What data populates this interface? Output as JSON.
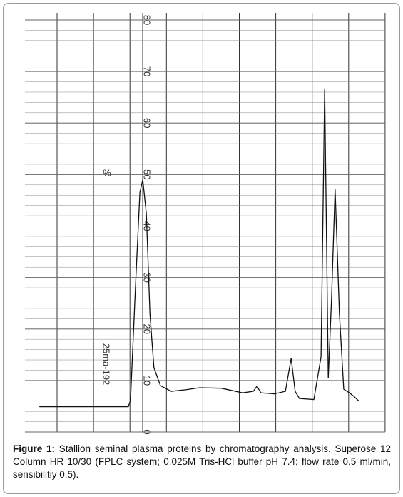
{
  "chart_data": {
    "type": "line",
    "annotations": [
      "%",
      "25ma-192"
    ],
    "x": [
      4,
      28.7,
      29.3,
      30.7,
      31.9,
      32.7,
      33.7,
      34.7,
      35.8,
      37.6,
      40.6,
      44.6,
      48.5,
      54.5,
      60.4,
      63.4,
      64.4,
      65.5,
      69.3,
      72.3,
      73.9,
      75,
      76.2,
      80.2,
      82.2,
      83.2,
      84.2,
      85.1,
      86.1,
      87.3,
      88.5,
      90.1,
      91.5,
      92.7
    ],
    "values": [
      4.9,
      4.9,
      6.2,
      28.5,
      46.5,
      49,
      42.4,
      22.9,
      12.5,
      9,
      7.9,
      8.2,
      8.6,
      8.5,
      7.6,
      7.9,
      8.9,
      7.6,
      7.4,
      7.9,
      14.3,
      7.9,
      6.5,
      6.3,
      14.6,
      66.7,
      10.4,
      25.7,
      47.2,
      22.9,
      8.3,
      7.6,
      6.8,
      6
    ],
    "color": "#111111",
    "xlim": [
      0,
      100
    ],
    "ylim": [
      0,
      80
    ],
    "yticks": [
      0,
      10,
      20,
      30,
      40,
      50,
      60,
      70,
      80
    ],
    "grid": true
  },
  "caption": {
    "label": "Figure 1:",
    "text": "Stallion seminal plasma proteins by chromatography analysis. Superose 12 Column HR 10/30 (FPLC system; 0.025M Tris-HCl buffer pH 7.4; flow rate 0.5 ml/min, sensibilitiy 0.5)."
  }
}
